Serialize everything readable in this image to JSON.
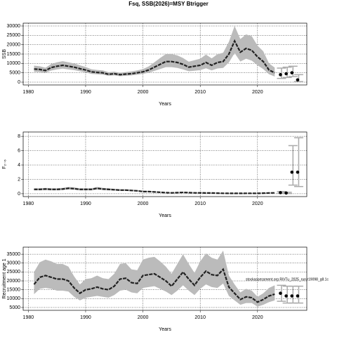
{
  "chart_data": [
    {
      "type": "line",
      "title": "Fsq, SSB(2026)=MSY Btrigger",
      "ylabel": "SSB",
      "xlabel": "Years",
      "xlim": [
        1979.1,
        2028.6
      ],
      "xticks": [
        1980,
        1990,
        2000,
        2010,
        2020
      ],
      "ylim": [
        -1500,
        31500
      ],
      "yticks": [
        0,
        5000,
        10000,
        15000,
        20000,
        25000,
        30000
      ],
      "grid": true,
      "color": "#222222",
      "band_color": "#bbbbbb",
      "x": [
        1981,
        1982,
        1983,
        1984,
        1985,
        1986,
        1987,
        1988,
        1989,
        1990,
        1991,
        1992,
        1993,
        1994,
        1995,
        1996,
        1997,
        1998,
        1999,
        2000,
        2001,
        2002,
        2003,
        2004,
        2005,
        2006,
        2007,
        2008,
        2009,
        2010,
        2011,
        2012,
        2013,
        2014,
        2015,
        2016,
        2017,
        2018,
        2019,
        2020,
        2021,
        2022,
        2023
      ],
      "values": [
        7000,
        6800,
        6200,
        7800,
        8500,
        9000,
        8500,
        8000,
        7200,
        6500,
        5500,
        5200,
        5000,
        4200,
        4500,
        4000,
        4300,
        4500,
        5000,
        5500,
        6500,
        8000,
        9500,
        11000,
        11000,
        10500,
        9500,
        8000,
        8500,
        9000,
        10500,
        9000,
        10500,
        11000,
        15000,
        22000,
        16000,
        18000,
        17000,
        13500,
        11000,
        6500,
        5000
      ],
      "lower": [
        5500,
        5400,
        5000,
        6200,
        6800,
        7200,
        6800,
        6400,
        5800,
        5200,
        4400,
        4200,
        4000,
        3400,
        3600,
        3200,
        3400,
        3600,
        4000,
        4400,
        5000,
        6000,
        7000,
        8000,
        8000,
        7600,
        6800,
        5800,
        6100,
        6400,
        7400,
        6300,
        7300,
        7600,
        10500,
        15500,
        11000,
        12500,
        11500,
        9000,
        7000,
        4200,
        3000
      ],
      "upper": [
        8800,
        8500,
        7700,
        9700,
        10600,
        11200,
        10600,
        10000,
        9000,
        8100,
        6900,
        6500,
        6300,
        5300,
        5600,
        5000,
        5400,
        5700,
        6300,
        7000,
        8400,
        10600,
        12900,
        15000,
        15000,
        14300,
        12900,
        10900,
        11700,
        12500,
        14700,
        12700,
        14900,
        15700,
        21500,
        30000,
        23000,
        25500,
        24500,
        19500,
        16500,
        10000,
        7800
      ],
      "points": {
        "x": [
          2024,
          2025,
          2026,
          2027
        ],
        "values": [
          4000,
          4500,
          5000,
          1200
        ],
        "lower": [
          2000,
          2500,
          3000,
          300
        ],
        "upper": [
          7500,
          8000,
          8500,
          4000
        ]
      }
    },
    {
      "type": "line",
      "ylabel": "F₂₋₆",
      "xlabel": "Years",
      "xlim": [
        1979.1,
        2028.6
      ],
      "xticks": [
        1980,
        1990,
        2000,
        2010,
        2020
      ],
      "ylim": [
        -0.4,
        8.6
      ],
      "yticks": [
        0,
        2,
        4,
        6,
        8
      ],
      "grid": true,
      "color": "#222222",
      "band_color": "#bbbbbb",
      "x": [
        1981,
        1982,
        1983,
        1984,
        1985,
        1986,
        1987,
        1988,
        1989,
        1990,
        1991,
        1992,
        1993,
        1994,
        1995,
        1996,
        1997,
        1998,
        1999,
        2000,
        2001,
        2002,
        2003,
        2004,
        2005,
        2006,
        2007,
        2008,
        2009,
        2010,
        2011,
        2012,
        2013,
        2014,
        2015,
        2016,
        2017,
        2018,
        2019,
        2020,
        2021,
        2022,
        2023
      ],
      "values": [
        0.6,
        0.6,
        0.65,
        0.6,
        0.6,
        0.65,
        0.75,
        0.7,
        0.6,
        0.6,
        0.6,
        0.75,
        0.65,
        0.6,
        0.55,
        0.5,
        0.5,
        0.45,
        0.4,
        0.3,
        0.3,
        0.25,
        0.2,
        0.15,
        0.12,
        0.15,
        0.18,
        0.15,
        0.12,
        0.12,
        0.1,
        0.1,
        0.08,
        0.06,
        0.05,
        0.05,
        0.05,
        0.06,
        0.06,
        0.05,
        0.08,
        0.1,
        0.12
      ],
      "lower": [
        0.48,
        0.48,
        0.52,
        0.48,
        0.48,
        0.52,
        0.6,
        0.56,
        0.48,
        0.48,
        0.48,
        0.6,
        0.52,
        0.48,
        0.44,
        0.4,
        0.4,
        0.36,
        0.32,
        0.24,
        0.24,
        0.2,
        0.16,
        0.12,
        0.09,
        0.11,
        0.14,
        0.11,
        0.09,
        0.09,
        0.07,
        0.07,
        0.06,
        0.04,
        0.03,
        0.03,
        0.03,
        0.04,
        0.04,
        0.03,
        0.05,
        0.07,
        0.08
      ],
      "upper": [
        0.75,
        0.75,
        0.81,
        0.75,
        0.75,
        0.81,
        0.94,
        0.88,
        0.75,
        0.75,
        0.75,
        0.94,
        0.81,
        0.75,
        0.69,
        0.63,
        0.63,
        0.56,
        0.5,
        0.38,
        0.38,
        0.31,
        0.25,
        0.19,
        0.16,
        0.2,
        0.24,
        0.2,
        0.16,
        0.16,
        0.14,
        0.14,
        0.11,
        0.09,
        0.08,
        0.08,
        0.08,
        0.09,
        0.09,
        0.08,
        0.12,
        0.15,
        0.18
      ],
      "points": {
        "x": [
          2024,
          2025,
          2026,
          2027
        ],
        "values": [
          0.15,
          0.1,
          3.0,
          3.0
        ],
        "lower": [
          0.05,
          0.03,
          1.2,
          1.0
        ],
        "upper": [
          0.3,
          0.2,
          6.7,
          7.8
        ]
      }
    },
    {
      "type": "line",
      "ylabel": "Recruitment age 1",
      "xlabel": "Years",
      "annotation": "stockassessment.org RiVTu_2025_run.r19098_g8.1c",
      "xlim": [
        1979.1,
        2028.6
      ],
      "xticks": [
        1980,
        1990,
        2000,
        2010,
        2020
      ],
      "ylim": [
        3400,
        39000
      ],
      "yticks": [
        5000,
        10000,
        15000,
        20000,
        25000,
        30000,
        35000
      ],
      "grid": true,
      "color": "#222222",
      "band_color": "#bbbbbb",
      "x": [
        1981,
        1982,
        1983,
        1984,
        1985,
        1986,
        1987,
        1988,
        1989,
        1990,
        1991,
        1992,
        1993,
        1994,
        1995,
        1996,
        1997,
        1998,
        1999,
        2000,
        2001,
        2002,
        2003,
        2004,
        2005,
        2006,
        2007,
        2008,
        2009,
        2010,
        2011,
        2012,
        2013,
        2014,
        2015,
        2016,
        2017,
        2018,
        2019,
        2020,
        2021,
        2022,
        2023
      ],
      "values": [
        18000,
        22000,
        23000,
        22000,
        21000,
        21000,
        20000,
        16000,
        13000,
        15000,
        15500,
        16500,
        15500,
        15000,
        17000,
        21000,
        21500,
        19000,
        18500,
        23000,
        23500,
        24000,
        22000,
        20000,
        17000,
        21000,
        25000,
        21000,
        17500,
        22000,
        25500,
        23500,
        23000,
        26500,
        16500,
        13000,
        9500,
        11000,
        10500,
        8000,
        9500,
        11500,
        12500
      ],
      "lower": [
        12500,
        15500,
        16000,
        15500,
        14500,
        14500,
        14000,
        11000,
        9000,
        10500,
        11000,
        11500,
        11000,
        10500,
        12000,
        14500,
        15000,
        13500,
        13000,
        16000,
        16500,
        17000,
        15500,
        14000,
        12000,
        14500,
        17500,
        14500,
        12000,
        15500,
        18000,
        16500,
        16000,
        18500,
        11500,
        9000,
        6500,
        7500,
        7500,
        5500,
        6500,
        8000,
        9000
      ],
      "upper": [
        25000,
        30500,
        32000,
        31000,
        29500,
        29500,
        28000,
        22500,
        18000,
        21000,
        21500,
        23000,
        21500,
        21000,
        24000,
        29500,
        30000,
        26500,
        26000,
        32000,
        33000,
        33500,
        31000,
        28000,
        24000,
        29500,
        35000,
        29500,
        24500,
        31000,
        35500,
        33000,
        32000,
        37000,
        23000,
        18000,
        13500,
        15500,
        14500,
        11000,
        13000,
        16000,
        17500
      ],
      "points": {
        "x": [
          2024,
          2025,
          2026,
          2027
        ],
        "values": [
          13000,
          11500,
          11500,
          11500
        ],
        "lower": [
          8500,
          7500,
          7500,
          7500
        ],
        "upper": [
          17500,
          17000,
          17000,
          17000
        ]
      }
    }
  ]
}
